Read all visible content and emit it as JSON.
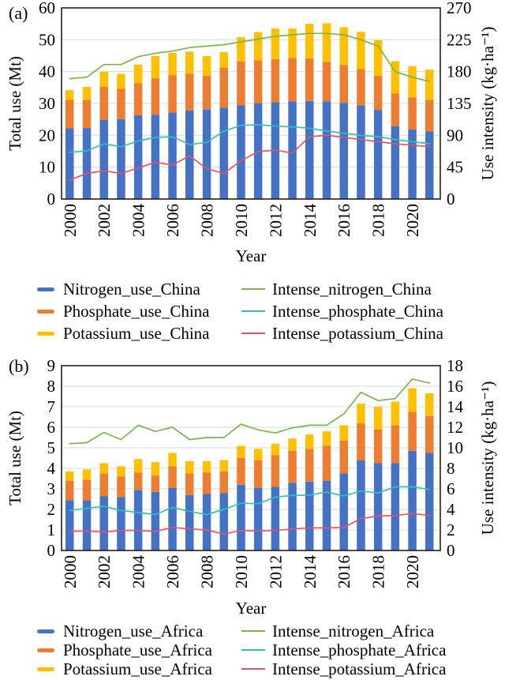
{
  "figure": {
    "background": "#FFFFFF",
    "grid_color": "#D9D9D9",
    "frame_color": "#1F1F1F",
    "text_color": "#000000"
  },
  "chart_data": [
    {
      "type": "bar",
      "subtype": "stacked-bars-with-lines",
      "panel_label": "(a)",
      "xlabel": "Year",
      "x": [
        2000,
        2001,
        2002,
        2003,
        2004,
        2005,
        2006,
        2007,
        2008,
        2009,
        2010,
        2011,
        2012,
        2013,
        2014,
        2015,
        2016,
        2017,
        2018,
        2019,
        2020,
        2021
      ],
      "x_tick_labels": [
        "2000",
        "2002",
        "2004",
        "2006",
        "2008",
        "2010",
        "2012",
        "2014",
        "2016",
        "2018",
        "2020"
      ],
      "left_axis": {
        "label": "Total use (Mt)",
        "min": 0,
        "max": 60,
        "ticks": [
          0,
          10,
          20,
          30,
          40,
          50,
          60
        ]
      },
      "right_axis": {
        "label": "Use intensity (kg·ha⁻¹)",
        "min": 0,
        "max": 270,
        "ticks": [
          0,
          45,
          90,
          135,
          180,
          225,
          270
        ]
      },
      "bar_series": [
        {
          "name": "Nitrogen_use_China",
          "color": "#4472C4",
          "values": [
            22.2,
            22.3,
            24.9,
            25.1,
            26.3,
            26.5,
            27.2,
            27.8,
            28.2,
            28.6,
            29.4,
            30.1,
            30.4,
            30.7,
            30.8,
            30.7,
            30.2,
            29.4,
            28.0,
            22.8,
            21.8,
            21.2
          ]
        },
        {
          "name": "Phosphate_use_China",
          "color": "#ED7D31",
          "values": [
            9.0,
            8.8,
            10.3,
            9.5,
            10.1,
            11.4,
            11.7,
            11.5,
            10.5,
            12.6,
            13.8,
            13.4,
            13.5,
            13.6,
            13.3,
            12.4,
            11.9,
            11.4,
            10.7,
            10.3,
            10.1,
            10.0
          ]
        },
        {
          "name": "Potassium_use_China",
          "color": "#FFC000",
          "values": [
            3.0,
            4.1,
            4.8,
            4.7,
            5.8,
            7.0,
            7.0,
            7.0,
            6.2,
            4.9,
            7.6,
            8.9,
            9.6,
            9.2,
            10.9,
            12.1,
            11.8,
            11.7,
            11.2,
            10.2,
            9.8,
            9.4
          ]
        }
      ],
      "line_series": [
        {
          "name": "Intense_nitrogen_China",
          "color": "#7AB648",
          "axis": "right",
          "values": [
            170,
            172,
            190,
            190,
            201,
            206,
            209,
            214,
            216,
            218,
            222,
            226,
            230,
            232,
            234,
            234,
            232,
            225,
            216,
            180,
            172,
            166
          ]
        },
        {
          "name": "Intense_phosphate_China",
          "color": "#35BEC1",
          "axis": "right",
          "values": [
            66,
            68,
            78,
            74,
            82,
            87,
            88,
            77,
            80,
            96,
            104,
            105,
            103,
            102,
            100,
            96,
            93,
            90,
            88,
            84,
            81,
            78
          ]
        },
        {
          "name": "Intense_potassium_China",
          "color": "#E25563",
          "axis": "right",
          "values": [
            27,
            36,
            40,
            36,
            44,
            52,
            48,
            61,
            43,
            36,
            54,
            67,
            69,
            65,
            88,
            90,
            87,
            84,
            81,
            78,
            76,
            74
          ]
        }
      ]
    },
    {
      "type": "bar",
      "subtype": "stacked-bars-with-lines",
      "panel_label": "(b)",
      "xlabel": "Year",
      "x": [
        2000,
        2001,
        2002,
        2003,
        2004,
        2005,
        2006,
        2007,
        2008,
        2009,
        2010,
        2011,
        2012,
        2013,
        2014,
        2015,
        2016,
        2017,
        2018,
        2019,
        2020,
        2021
      ],
      "x_tick_labels": [
        "2000",
        "2002",
        "2004",
        "2006",
        "2008",
        "2010",
        "2012",
        "2014",
        "2016",
        "2018",
        "2020"
      ],
      "left_axis": {
        "label": "Total use (Mt)",
        "min": 0,
        "max": 9,
        "ticks": [
          0,
          1,
          2,
          3,
          4,
          5,
          6,
          7,
          8,
          9
        ]
      },
      "right_axis": {
        "label": "Use intensity (kg·ha⁻¹)",
        "min": 0,
        "max": 18,
        "ticks": [
          0,
          2,
          4,
          6,
          8,
          10,
          12,
          14,
          16,
          18
        ]
      },
      "bar_series": [
        {
          "name": "Nitrogen_use_Africa",
          "color": "#4472C4",
          "values": [
            2.45,
            2.45,
            2.65,
            2.6,
            2.95,
            2.85,
            3.05,
            2.7,
            2.75,
            2.8,
            3.2,
            3.05,
            3.1,
            3.3,
            3.35,
            3.4,
            3.75,
            4.4,
            4.25,
            4.25,
            4.85,
            4.75
          ]
        },
        {
          "name": "Phosphate_use_Africa",
          "color": "#ED7D31",
          "values": [
            0.95,
            1.0,
            1.1,
            1.0,
            0.85,
            0.8,
            1.05,
            1.05,
            1.05,
            1.05,
            1.3,
            1.35,
            1.55,
            1.55,
            1.6,
            1.7,
            1.6,
            1.8,
            1.65,
            1.85,
            1.9,
            1.8
          ]
        },
        {
          "name": "Potassium_use_Africa",
          "color": "#FFC000",
          "values": [
            0.45,
            0.5,
            0.5,
            0.5,
            0.65,
            0.65,
            0.65,
            0.6,
            0.55,
            0.55,
            0.6,
            0.55,
            0.55,
            0.6,
            0.7,
            0.7,
            0.75,
            0.95,
            1.1,
            1.15,
            1.15,
            1.1
          ]
        }
      ],
      "line_series": [
        {
          "name": "Intense_nitrogen_Africa",
          "color": "#7AB648",
          "axis": "right",
          "values": [
            10.4,
            10.5,
            11.5,
            10.8,
            12.2,
            11.6,
            12.0,
            10.8,
            11.0,
            11.0,
            12.3,
            11.75,
            11.45,
            11.95,
            12.2,
            12.2,
            13.3,
            15.4,
            14.6,
            14.8,
            16.7,
            16.3
          ]
        },
        {
          "name": "Intense_phosphate_Africa",
          "color": "#35BEC1",
          "axis": "right",
          "values": [
            3.9,
            4.1,
            4.3,
            3.9,
            3.7,
            3.5,
            4.2,
            3.8,
            3.5,
            4.0,
            4.6,
            4.55,
            5.2,
            5.35,
            5.4,
            5.7,
            5.3,
            5.8,
            5.6,
            6.2,
            6.2,
            5.95
          ]
        },
        {
          "name": "Intense_potassium_Africa",
          "color": "#E25563",
          "axis": "right",
          "values": [
            1.85,
            1.9,
            1.8,
            1.95,
            1.95,
            1.85,
            2.25,
            2.1,
            2.0,
            1.6,
            1.95,
            1.9,
            1.95,
            2.1,
            2.2,
            2.2,
            2.25,
            3.1,
            3.35,
            3.4,
            3.6,
            3.4
          ]
        }
      ]
    }
  ]
}
